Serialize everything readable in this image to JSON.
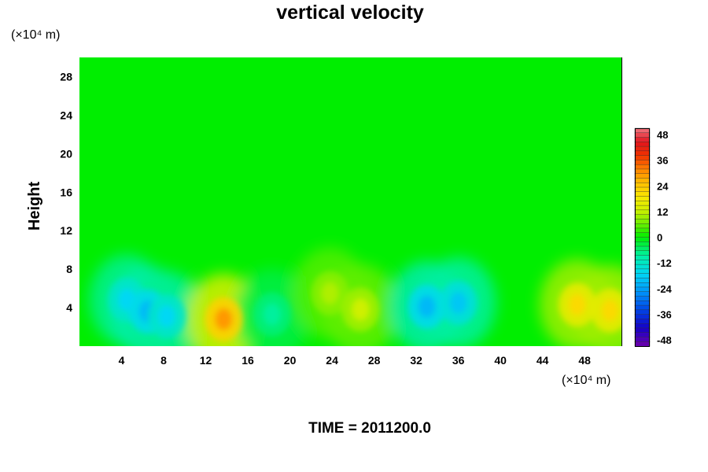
{
  "chart_data": {
    "type": "heatmap",
    "title": "vertical velocity",
    "ylabel": "Height",
    "y_unit": "(×10⁴ m)",
    "x_unit": "(×10⁴ m)",
    "time_label": "TIME = 2011200.0",
    "xlim": [
      0,
      51.5
    ],
    "ylim": [
      0,
      30
    ],
    "x_ticks": [
      4,
      8,
      12,
      16,
      20,
      24,
      28,
      32,
      36,
      40,
      44,
      48
    ],
    "y_ticks": [
      4,
      8,
      12,
      16,
      20,
      24,
      28
    ],
    "colorbar": {
      "min": -48,
      "max": 48,
      "ticks": [
        48,
        36,
        24,
        12,
        0,
        -12,
        -24,
        -36,
        -48
      ]
    },
    "features": [
      {
        "x": 4.5,
        "y": 4.8,
        "value": -16
      },
      {
        "x": 6.5,
        "y": 3.6,
        "value": -20
      },
      {
        "x": 8.3,
        "y": 3.1,
        "value": -16
      },
      {
        "x": 13.7,
        "y": 2.8,
        "value": 28
      },
      {
        "x": 18.3,
        "y": 3.3,
        "value": -8
      },
      {
        "x": 23.8,
        "y": 5.5,
        "value": 10
      },
      {
        "x": 26.7,
        "y": 3.8,
        "value": 12
      },
      {
        "x": 33.0,
        "y": 4.1,
        "value": -20
      },
      {
        "x": 36.0,
        "y": 4.5,
        "value": -18
      },
      {
        "x": 47.3,
        "y": 4.3,
        "value": 20
      },
      {
        "x": 50.4,
        "y": 3.7,
        "value": 20
      }
    ]
  }
}
